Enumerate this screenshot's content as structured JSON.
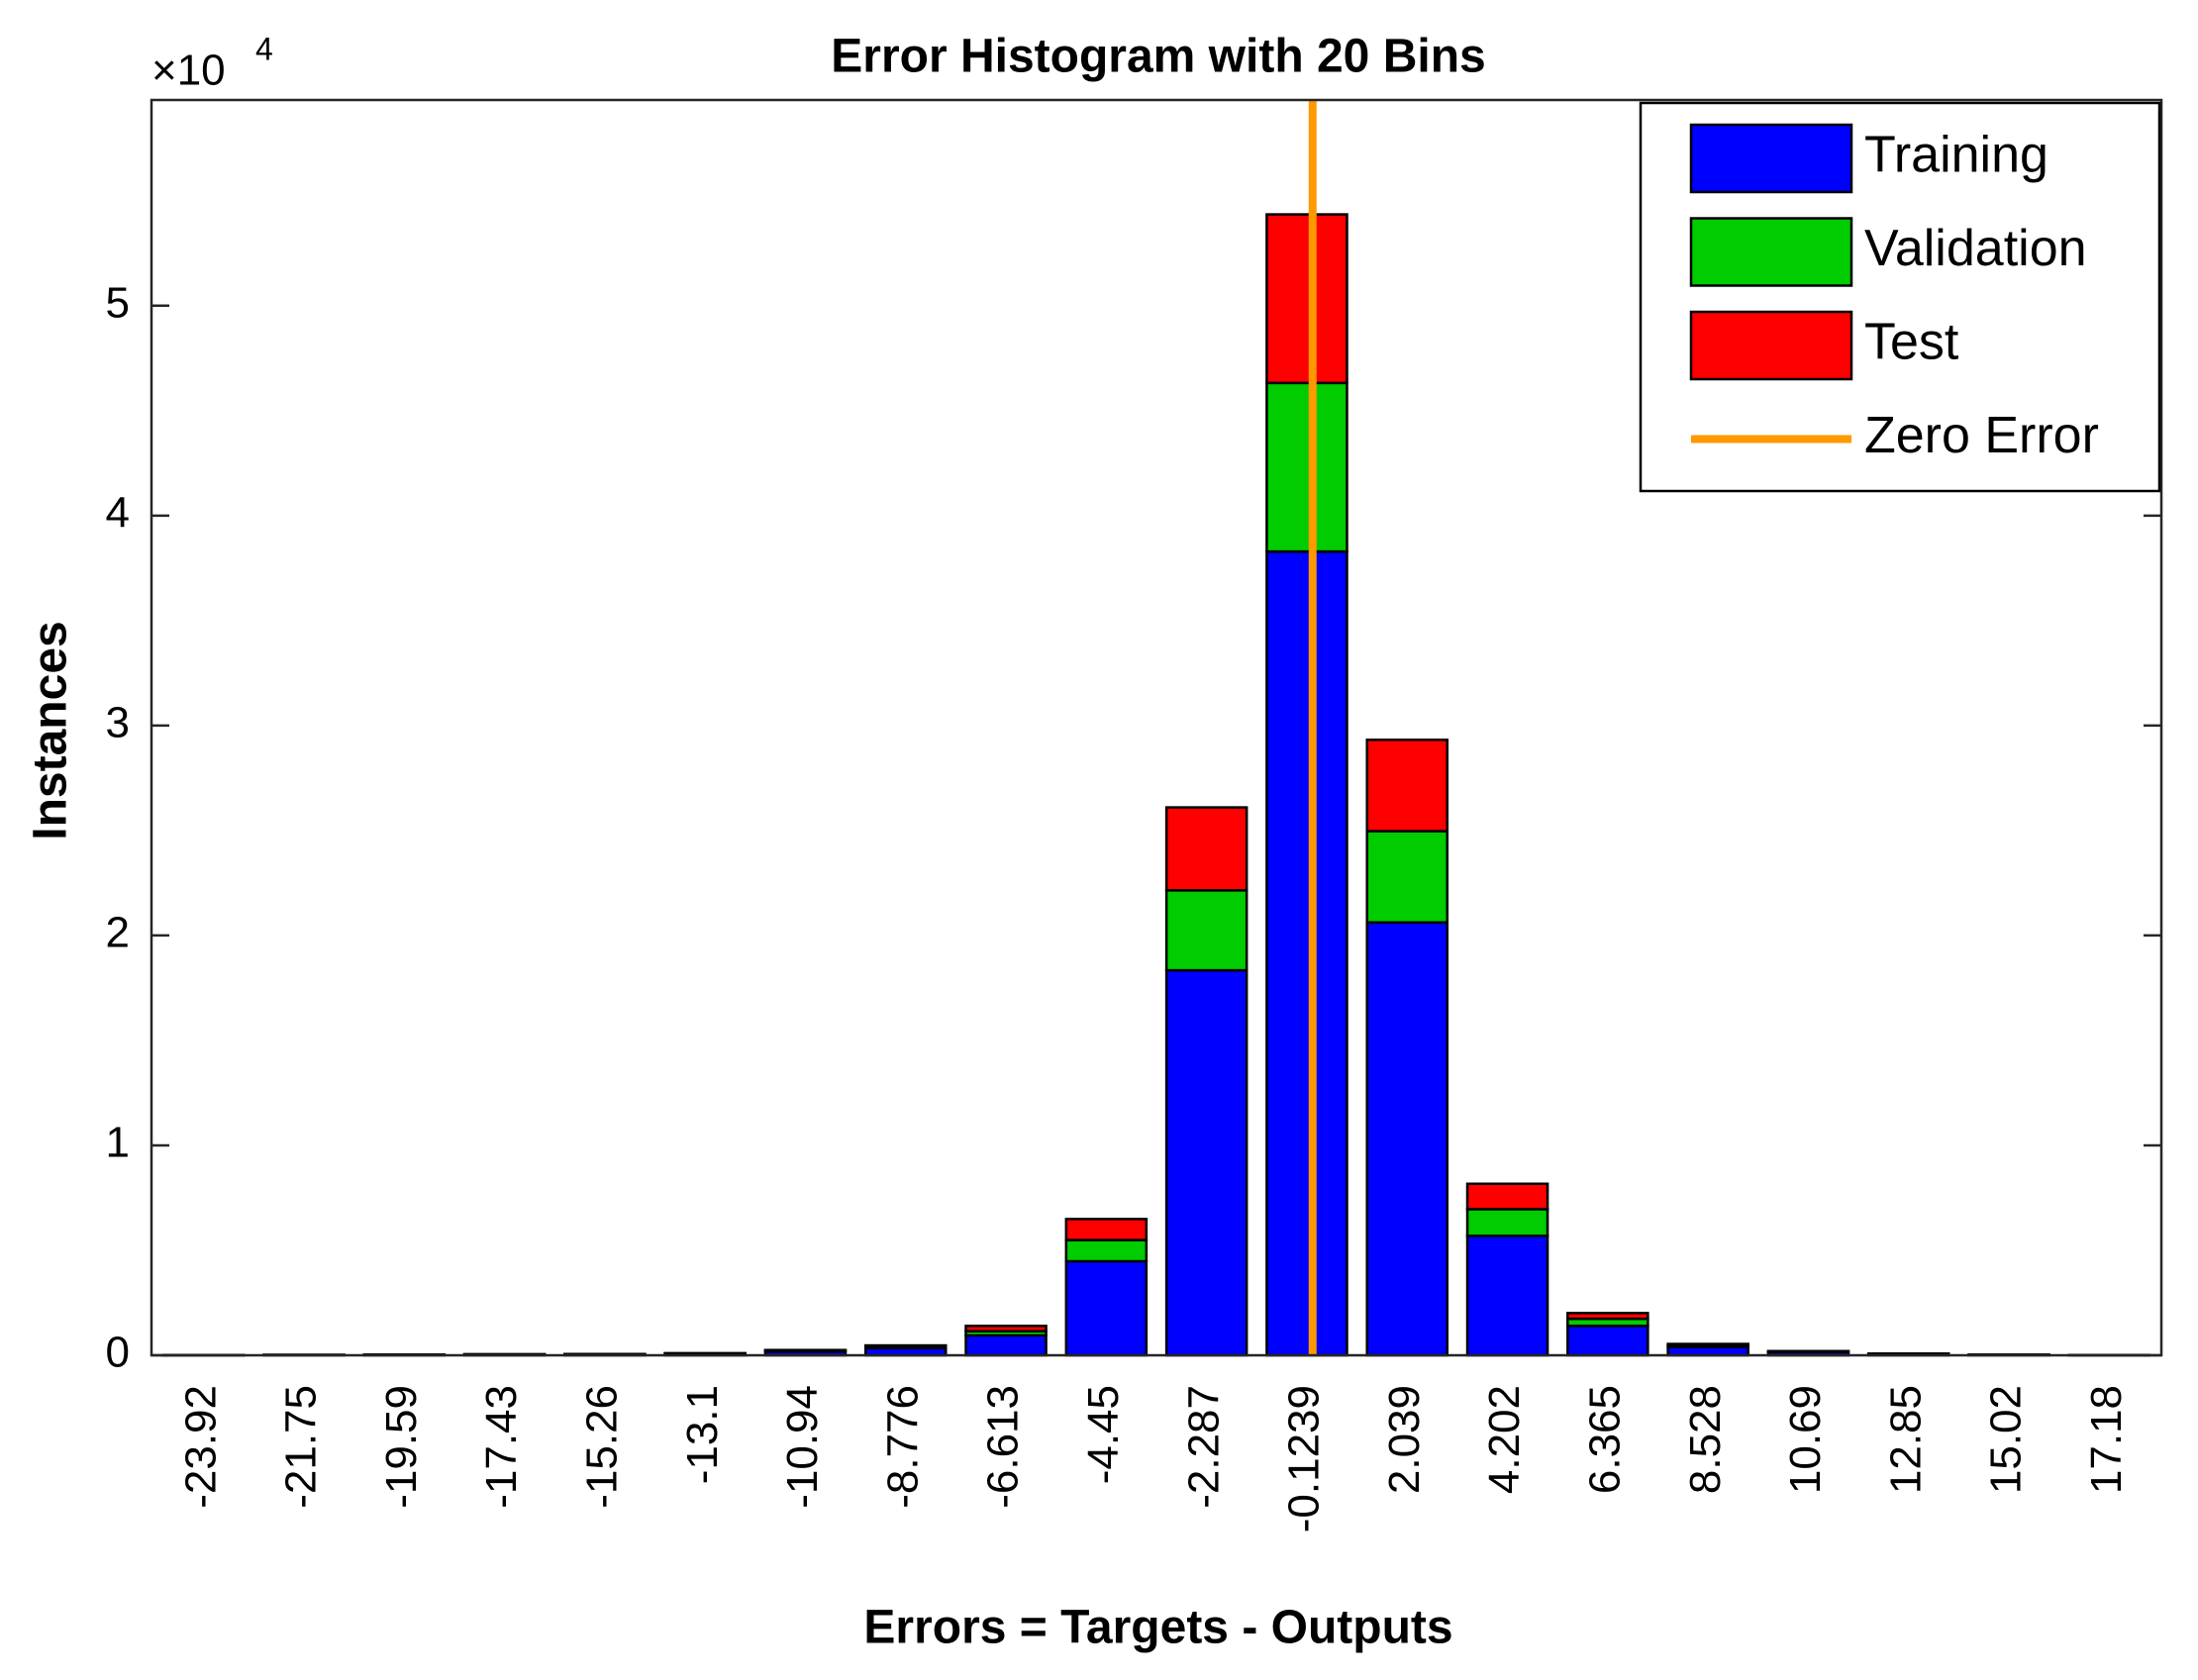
{
  "chart_data": {
    "type": "bar",
    "stacked": true,
    "title": "Error Histogram with 20 Bins",
    "x_label": "Errors = Targets - Outputs",
    "y_label": "Instances",
    "y_multiplier": "×10",
    "y_multiplier_exponent": "4",
    "categories": [
      "-23.92",
      "-21.75",
      "-19.59",
      "-17.43",
      "-15.26",
      "-13.1",
      "-10.94",
      "-8.776",
      "-6.613",
      "-4.45",
      "-2.287",
      "-0.1239",
      "2.039",
      "4.202",
      "6.365",
      "8.528",
      "10.69",
      "12.85",
      "15.02",
      "17.18"
    ],
    "series": [
      {
        "name": "Training",
        "color": "#0000ff",
        "values": [
          8,
          15,
          22,
          36,
          44,
          72,
          180,
          340,
          950,
          4480,
          18340,
          38290,
          20620,
          5690,
          1400,
          400,
          150,
          60,
          20,
          8
        ]
      },
      {
        "name": "Validation",
        "color": "#00cc00",
        "values": [
          1,
          3,
          4,
          7,
          8,
          14,
          40,
          70,
          200,
          1010,
          3810,
          8030,
          4350,
          1270,
          340,
          70,
          30,
          10,
          5,
          1
        ]
      },
      {
        "name": "Test",
        "color": "#ff0000",
        "values": [
          1,
          2,
          4,
          7,
          8,
          14,
          30,
          60,
          250,
          1000,
          3950,
          8030,
          4350,
          1210,
          270,
          70,
          20,
          10,
          5,
          1
        ]
      }
    ],
    "lines": [
      {
        "name": "Zero Error",
        "color": "#ff9900",
        "x": 0
      }
    ],
    "ylim": [
      0,
      59800
    ],
    "yticks": [
      {
        "value": 0,
        "label": "0"
      },
      {
        "value": 10000,
        "label": "1"
      },
      {
        "value": 20000,
        "label": "2"
      },
      {
        "value": 30000,
        "label": "3"
      },
      {
        "value": 40000,
        "label": "4"
      },
      {
        "value": 50000,
        "label": "5"
      }
    ],
    "legend": "top-right"
  }
}
